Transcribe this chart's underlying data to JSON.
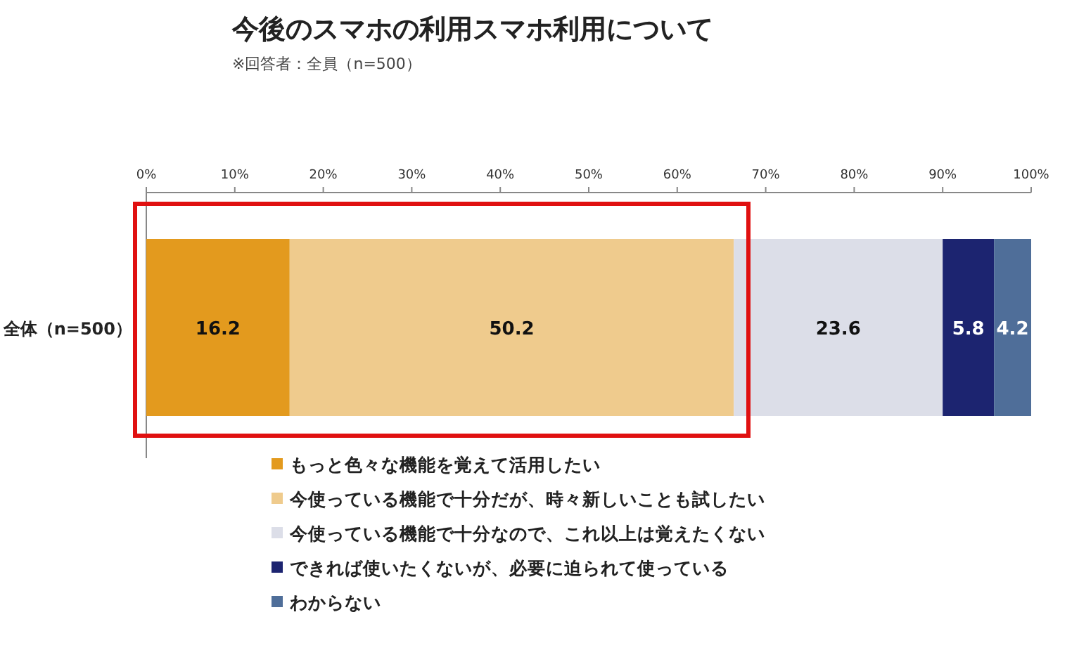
{
  "chart_data": {
    "type": "bar",
    "orientation": "horizontal",
    "stacked": true,
    "title": "今後のスマホの利用スマホ利用について",
    "subtitle": "※回答者：全員（n=500）",
    "categories": [
      "全体（n=500）"
    ],
    "series": [
      {
        "name": "もっと色々な機能を覚えて活用したい",
        "color": "#e39a1e",
        "values": [
          16.2
        ]
      },
      {
        "name": "今使っている機能で十分だが、時々新しいことも試したい",
        "color": "#efcb8d",
        "values": [
          50.2
        ]
      },
      {
        "name": "今使っている機能で十分なので、これ以上は覚えたくない",
        "color": "#dcdee8",
        "values": [
          23.6
        ]
      },
      {
        "name": "できれば使いたくないが、必要に迫られて使っている",
        "color": "#1c2470",
        "values": [
          5.8
        ]
      },
      {
        "name": "わからない",
        "color": "#4f6e99",
        "values": [
          4.2
        ]
      }
    ],
    "xlim": [
      0,
      100
    ],
    "xticks": [
      {
        "value": 0,
        "label": "0%"
      },
      {
        "value": 10,
        "label": "10%"
      },
      {
        "value": 20,
        "label": "20%"
      },
      {
        "value": 30,
        "label": "30%"
      },
      {
        "value": 40,
        "label": "40%"
      },
      {
        "value": 50,
        "label": "50%"
      },
      {
        "value": 60,
        "label": "60%"
      },
      {
        "value": 70,
        "label": "70%"
      },
      {
        "value": 80,
        "label": "80%"
      },
      {
        "value": 90,
        "label": "90%"
      },
      {
        "value": 100,
        "label": "100%"
      }
    ],
    "data_labels": true,
    "legend": "bottom",
    "grid": false
  }
}
